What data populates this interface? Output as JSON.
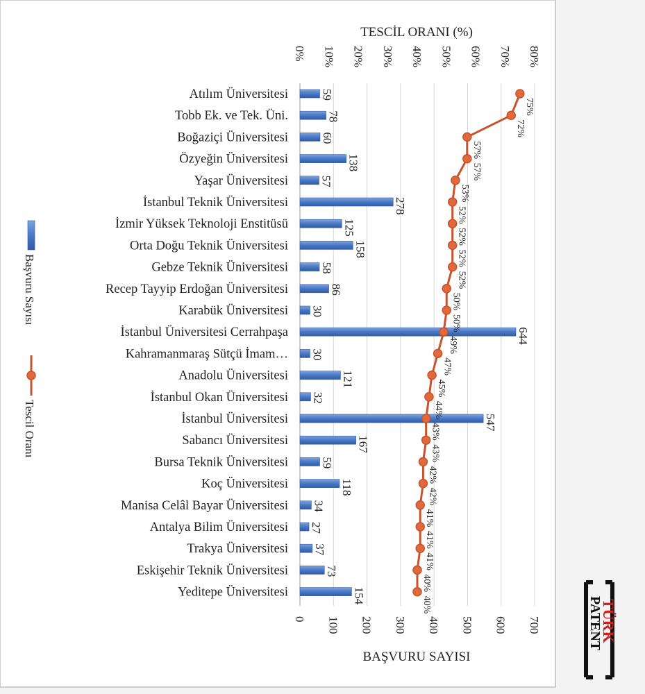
{
  "chart_data": {
    "type": "bar",
    "categories": [
      "Atılım Üniversitesi",
      "Tobb Ek. ve Tek. Üni.",
      "Boğaziçi Üniversitesi",
      "Özyeğin Üniversitesi",
      "Yaşar Üniversitesi",
      "İstanbul Teknik Üniversitesi",
      "İzmir Yüksek Teknoloji Enstitüsü",
      "Orta Doğu Teknik Üniversitesi",
      "Gebze Teknik Üniversitesi",
      "Recep Tayyip Erdoğan Üniversitesi",
      "Karabük Üniversitesi",
      "İstanbul Üniversitesi Cerrahpaşa",
      "Kahramanmaraş Sütçü İmam…",
      "Anadolu Üniversitesi",
      "İstanbul Okan Üniversitesi",
      "İstanbul Üniversitesi",
      "Sabancı Üniversitesi",
      "Bursa Teknik Üniversitesi",
      "Koç Üniversitesi",
      "Manisa Celâl Bayar Üniversitesi",
      "Antalya Bilim Üniversitesi",
      "Trakya Üniversitesi",
      "Eskişehir Teknik Üniversitesi",
      "Yeditepe Üniversitesi"
    ],
    "series": [
      {
        "name": "Başvuru Sayısı",
        "kind": "bar",
        "values": [
          59,
          78,
          60,
          138,
          57,
          278,
          125,
          158,
          58,
          86,
          30,
          644,
          30,
          121,
          32,
          547,
          167,
          59,
          118,
          34,
          27,
          37,
          73,
          154
        ],
        "labels": [
          "59",
          "78",
          "60",
          "138",
          "57",
          "278",
          "125",
          "158",
          "58",
          "86",
          "30",
          "644",
          "30",
          "121",
          "32",
          "547",
          "167",
          "59",
          "118",
          "34",
          "27",
          "37",
          "73",
          "154"
        ]
      },
      {
        "name": "Tescil Oranı",
        "kind": "line",
        "values": [
          75,
          72,
          57,
          57,
          53,
          52,
          52,
          52,
          52,
          50,
          50,
          49,
          47,
          45,
          44,
          43,
          43,
          42,
          42,
          41,
          41,
          41,
          40,
          40
        ],
        "labels": [
          "75%",
          "72%",
          "57%",
          "57%",
          "53%",
          "52%",
          "52%",
          "52%",
          "52%",
          "50%",
          "50%",
          "49%",
          "47%",
          "45%",
          "44%",
          "43%",
          "43%",
          "42%",
          "42%",
          "41%",
          "41%",
          "41%",
          "40%",
          "40%"
        ]
      }
    ],
    "bar_axis": {
      "title": "BAŞVURU SAYISI",
      "range": [
        0,
        700
      ],
      "ticks": [
        "0",
        "100",
        "200",
        "300",
        "400",
        "500",
        "600",
        "700"
      ]
    },
    "rate_axis": {
      "title": "TESCİL ORANI (%)",
      "range": [
        0,
        80
      ],
      "ticks": [
        "0%",
        "10%",
        "20%",
        "30%",
        "40%",
        "50%",
        "60%",
        "70%",
        "80%"
      ]
    },
    "grid": true,
    "legend_position": "left",
    "colors": {
      "bar": "#4a78c4",
      "line": "#c8532a"
    }
  },
  "brand": {
    "line1": "TÜRK",
    "line2": "PATENT"
  }
}
